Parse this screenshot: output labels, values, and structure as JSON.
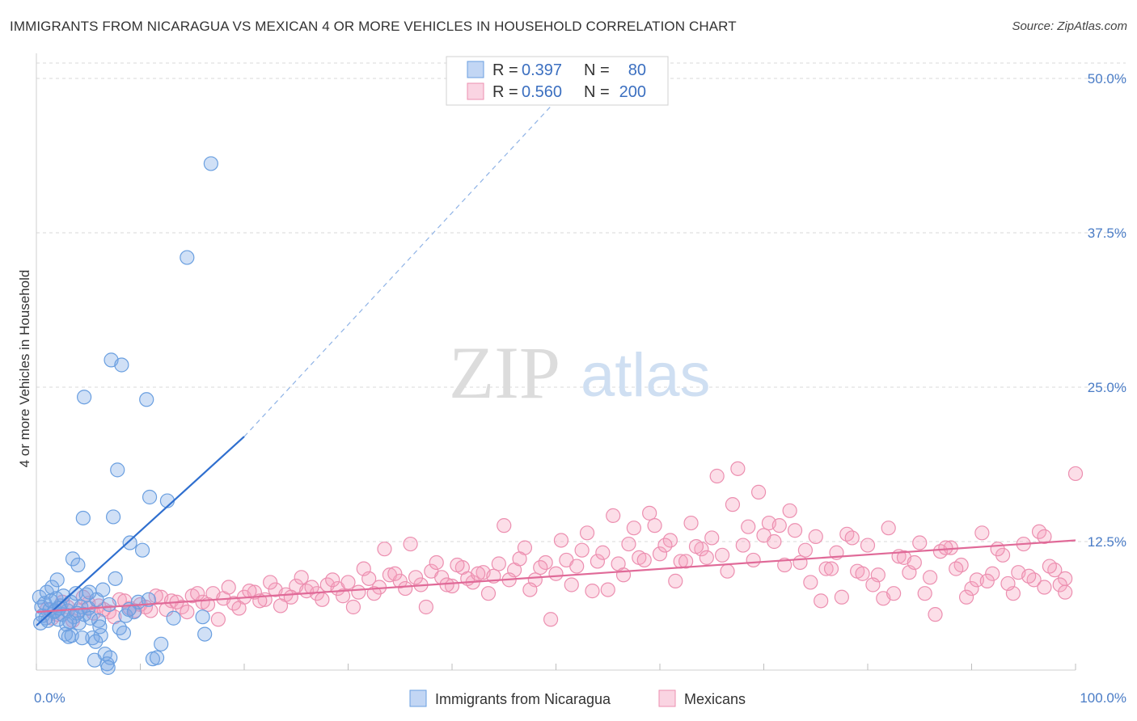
{
  "header": {
    "title": "IMMIGRANTS FROM NICARAGUA VS MEXICAN 4 OR MORE VEHICLES IN HOUSEHOLD CORRELATION CHART",
    "source": "Source: ZipAtlas.com"
  },
  "watermark": {
    "zip": "ZIP",
    "atlas": "atlas"
  },
  "legend": {
    "r_label": "R =",
    "n_label": "N =",
    "rows": [
      {
        "r": "0.397",
        "n": "80"
      },
      {
        "r": "0.560",
        "n": "200"
      }
    ]
  },
  "bottom_legend": [
    "Immigrants from Nicaragua",
    "Mexicans"
  ],
  "colors": {
    "blue": "#6a9fe0",
    "blue_fill": "rgba(120,165,230,0.35)",
    "blue_line": "#2f6fcf",
    "pink": "#ec8fb0",
    "pink_fill": "rgba(245,160,190,0.35)",
    "pink_line": "#e06a98",
    "grid": "#d9d9d9",
    "tick_text": "#4a7cc6"
  },
  "chart_data": {
    "type": "scatter",
    "title": "IMMIGRANTS FROM NICARAGUA VS MEXICAN 4 OR MORE VEHICLES IN HOUSEHOLD CORRELATION CHART",
    "xlabel": "",
    "ylabel": "4 or more Vehicles in Household",
    "xlim": [
      0,
      100
    ],
    "ylim": [
      0,
      52
    ],
    "x_tick_labels": [
      "0.0%",
      "100.0%"
    ],
    "y_ticks": [
      12.5,
      25.0,
      37.5,
      50.0
    ],
    "y_tick_labels": [
      "12.5%",
      "25.0%",
      "37.5%",
      "50.0%"
    ],
    "grid": true,
    "legend_position": "top-center",
    "series": [
      {
        "name": "Immigrants from Nicaragua",
        "r": 0.397,
        "n": 80,
        "trend": {
          "x0": 0,
          "y0": 5.7,
          "x1": 20,
          "y1": 21.0,
          "dashed_to": {
            "x": 52,
            "y": 50.0
          }
        },
        "points": [
          [
            0.3,
            8.0
          ],
          [
            0.5,
            7.2
          ],
          [
            0.6,
            6.5
          ],
          [
            0.8,
            7.5
          ],
          [
            1.0,
            8.4
          ],
          [
            1.1,
            6.1
          ],
          [
            1.3,
            7.0
          ],
          [
            1.5,
            8.8
          ],
          [
            1.7,
            6.8
          ],
          [
            1.9,
            7.9
          ],
          [
            2.0,
            9.4
          ],
          [
            2.1,
            6.2
          ],
          [
            2.3,
            7.3
          ],
          [
            2.5,
            6.6
          ],
          [
            2.6,
            8.1
          ],
          [
            2.8,
            5.0
          ],
          [
            3.0,
            6.9
          ],
          [
            3.1,
            4.8
          ],
          [
            3.3,
            7.6
          ],
          [
            3.5,
            11.1
          ],
          [
            3.6,
            6.4
          ],
          [
            3.8,
            8.3
          ],
          [
            4.0,
            10.6
          ],
          [
            4.1,
            5.9
          ],
          [
            4.3,
            7.2
          ],
          [
            4.5,
            14.4
          ],
          [
            4.6,
            6.6
          ],
          [
            4.8,
            8.2
          ],
          [
            5.0,
            7.1
          ],
          [
            5.2,
            6.3
          ],
          [
            5.4,
            4.7
          ],
          [
            5.6,
            2.9
          ],
          [
            5.8,
            7.8
          ],
          [
            6.0,
            6.1
          ],
          [
            6.2,
            4.9
          ],
          [
            6.4,
            8.6
          ],
          [
            6.6,
            3.4
          ],
          [
            6.8,
            2.6
          ],
          [
            7.0,
            7.4
          ],
          [
            7.2,
            27.2
          ],
          [
            7.4,
            14.5
          ],
          [
            7.6,
            9.5
          ],
          [
            7.8,
            18.3
          ],
          [
            8.0,
            5.5
          ],
          [
            8.2,
            26.8
          ],
          [
            8.4,
            5.1
          ],
          [
            8.6,
            6.5
          ],
          [
            9.0,
            12.4
          ],
          [
            9.4,
            6.8
          ],
          [
            9.8,
            7.6
          ],
          [
            10.2,
            11.8
          ],
          [
            10.6,
            24.0
          ],
          [
            10.9,
            16.1
          ],
          [
            11.2,
            3.0
          ],
          [
            11.6,
            3.1
          ],
          [
            12.0,
            4.2
          ],
          [
            12.6,
            15.8
          ],
          [
            13.2,
            6.3
          ],
          [
            10.8,
            7.8
          ],
          [
            14.5,
            35.5
          ],
          [
            16.0,
            6.4
          ],
          [
            4.6,
            24.2
          ],
          [
            16.8,
            43.1
          ],
          [
            3.4,
            4.9
          ],
          [
            2.9,
            5.8
          ],
          [
            1.4,
            7.7
          ],
          [
            0.9,
            6.3
          ],
          [
            1.8,
            6.9
          ],
          [
            2.2,
            7.1
          ],
          [
            3.9,
            6.7
          ],
          [
            5.1,
            8.4
          ],
          [
            6.1,
            5.6
          ],
          [
            7.1,
            3.1
          ],
          [
            8.9,
            7.0
          ],
          [
            4.4,
            4.7
          ],
          [
            5.7,
            4.4
          ],
          [
            6.9,
            2.3
          ],
          [
            3.2,
            6.0
          ],
          [
            16.2,
            5.0
          ],
          [
            0.4,
            5.9
          ]
        ]
      },
      {
        "name": "Mexicans",
        "r": 0.56,
        "n": 200,
        "trend": {
          "x0": 0,
          "y0": 6.8,
          "x1": 100,
          "y1": 12.6
        },
        "points": [
          [
            1.0,
            7.0
          ],
          [
            2.0,
            6.6
          ],
          [
            3.0,
            7.2
          ],
          [
            4.0,
            6.9
          ],
          [
            5.0,
            7.5
          ],
          [
            6.0,
            7.3
          ],
          [
            7.0,
            6.8
          ],
          [
            8.0,
            7.8
          ],
          [
            9.0,
            7.1
          ],
          [
            10.0,
            7.4
          ],
          [
            11.0,
            6.9
          ],
          [
            12.0,
            8.0
          ],
          [
            13.0,
            7.7
          ],
          [
            14.0,
            7.2
          ],
          [
            15.0,
            8.1
          ],
          [
            16.0,
            7.6
          ],
          [
            17.0,
            8.3
          ],
          [
            18.0,
            7.9
          ],
          [
            19.0,
            7.5
          ],
          [
            20.0,
            8.0
          ],
          [
            21.0,
            8.4
          ],
          [
            22.0,
            7.8
          ],
          [
            23.0,
            8.6
          ],
          [
            24.0,
            8.2
          ],
          [
            25.0,
            8.9
          ],
          [
            26.0,
            8.5
          ],
          [
            27.0,
            8.3
          ],
          [
            28.0,
            9.0
          ],
          [
            29.0,
            8.7
          ],
          [
            30.0,
            9.2
          ],
          [
            31.0,
            8.4
          ],
          [
            32.0,
            9.5
          ],
          [
            33.0,
            8.8
          ],
          [
            34.0,
            9.8
          ],
          [
            35.0,
            9.3
          ],
          [
            36.0,
            12.3
          ],
          [
            37.0,
            9.0
          ],
          [
            38.0,
            10.1
          ],
          [
            39.0,
            9.6
          ],
          [
            40.0,
            8.9
          ],
          [
            41.0,
            10.4
          ],
          [
            42.0,
            9.2
          ],
          [
            43.0,
            10.0
          ],
          [
            44.0,
            9.7
          ],
          [
            45.0,
            13.8
          ],
          [
            46.0,
            10.2
          ],
          [
            47.0,
            12.0
          ],
          [
            48.0,
            9.4
          ],
          [
            49.0,
            10.8
          ],
          [
            50.0,
            9.9
          ],
          [
            51.0,
            11.0
          ],
          [
            52.0,
            10.5
          ],
          [
            53.0,
            13.2
          ],
          [
            54.0,
            10.9
          ],
          [
            55.0,
            8.6
          ],
          [
            56.0,
            10.7
          ],
          [
            57.0,
            12.3
          ],
          [
            58.0,
            11.2
          ],
          [
            59.0,
            14.8
          ],
          [
            60.0,
            11.5
          ],
          [
            61.0,
            12.6
          ],
          [
            62.0,
            10.9
          ],
          [
            63.0,
            14.0
          ],
          [
            64.0,
            11.9
          ],
          [
            65.0,
            12.8
          ],
          [
            66.0,
            11.4
          ],
          [
            67.0,
            15.5
          ],
          [
            68.0,
            12.2
          ],
          [
            69.0,
            11.0
          ],
          [
            70.0,
            13.0
          ],
          [
            71.0,
            12.5
          ],
          [
            72.0,
            10.6
          ],
          [
            73.0,
            13.4
          ],
          [
            74.0,
            11.8
          ],
          [
            75.0,
            12.9
          ],
          [
            76.0,
            10.3
          ],
          [
            77.0,
            11.6
          ],
          [
            78.0,
            13.1
          ],
          [
            79.0,
            10.1
          ],
          [
            80.0,
            12.2
          ],
          [
            81.0,
            9.8
          ],
          [
            82.0,
            13.6
          ],
          [
            83.0,
            11.3
          ],
          [
            84.0,
            10.0
          ],
          [
            85.0,
            12.4
          ],
          [
            86.0,
            9.6
          ],
          [
            87.0,
            11.7
          ],
          [
            88.0,
            12.0
          ],
          [
            89.0,
            10.6
          ],
          [
            90.0,
            8.7
          ],
          [
            91.0,
            13.2
          ],
          [
            92.0,
            9.9
          ],
          [
            93.0,
            11.4
          ],
          [
            94.0,
            8.3
          ],
          [
            95.0,
            12.3
          ],
          [
            96.0,
            9.4
          ],
          [
            97.0,
            8.8
          ],
          [
            98.0,
            10.2
          ],
          [
            99.0,
            9.5
          ],
          [
            100.0,
            18.0
          ],
          [
            1.5,
            6.3
          ],
          [
            2.5,
            7.6
          ],
          [
            3.5,
            6.1
          ],
          [
            4.5,
            8.0
          ],
          [
            5.5,
            6.7
          ],
          [
            6.5,
            7.0
          ],
          [
            7.5,
            6.4
          ],
          [
            8.5,
            7.7
          ],
          [
            9.5,
            6.9
          ],
          [
            10.5,
            7.2
          ],
          [
            11.5,
            8.1
          ],
          [
            12.5,
            7.0
          ],
          [
            13.5,
            7.6
          ],
          [
            14.5,
            6.8
          ],
          [
            15.5,
            8.3
          ],
          [
            16.5,
            7.4
          ],
          [
            17.5,
            6.2
          ],
          [
            18.5,
            8.8
          ],
          [
            19.5,
            7.1
          ],
          [
            20.5,
            8.5
          ],
          [
            21.5,
            7.7
          ],
          [
            22.5,
            9.2
          ],
          [
            23.5,
            7.3
          ],
          [
            24.5,
            8.0
          ],
          [
            25.5,
            9.6
          ],
          [
            26.5,
            8.8
          ],
          [
            27.5,
            7.8
          ],
          [
            28.5,
            9.4
          ],
          [
            29.5,
            8.1
          ],
          [
            30.5,
            7.2
          ],
          [
            31.5,
            10.3
          ],
          [
            32.5,
            8.3
          ],
          [
            33.5,
            11.9
          ],
          [
            34.5,
            9.9
          ],
          [
            35.5,
            8.7
          ],
          [
            36.5,
            9.6
          ],
          [
            37.5,
            7.2
          ],
          [
            38.5,
            10.8
          ],
          [
            39.5,
            9.0
          ],
          [
            40.5,
            10.6
          ],
          [
            41.5,
            9.5
          ],
          [
            42.5,
            9.9
          ],
          [
            43.5,
            8.3
          ],
          [
            44.5,
            10.7
          ],
          [
            45.5,
            9.4
          ],
          [
            46.5,
            11.1
          ],
          [
            47.5,
            8.6
          ],
          [
            48.5,
            10.4
          ],
          [
            49.5,
            6.2
          ],
          [
            50.5,
            12.6
          ],
          [
            51.5,
            9.0
          ],
          [
            52.5,
            11.8
          ],
          [
            53.5,
            8.5
          ],
          [
            54.5,
            11.6
          ],
          [
            55.5,
            14.6
          ],
          [
            56.5,
            9.8
          ],
          [
            57.5,
            13.6
          ],
          [
            58.5,
            11.0
          ],
          [
            59.5,
            13.8
          ],
          [
            60.5,
            12.2
          ],
          [
            61.5,
            9.3
          ],
          [
            62.5,
            10.9
          ],
          [
            63.5,
            12.1
          ],
          [
            64.5,
            11.2
          ],
          [
            65.5,
            17.8
          ],
          [
            66.5,
            10.1
          ],
          [
            67.5,
            18.4
          ],
          [
            68.5,
            13.7
          ],
          [
            69.5,
            16.5
          ],
          [
            70.5,
            14.0
          ],
          [
            71.5,
            13.8
          ],
          [
            72.5,
            15.0
          ],
          [
            73.5,
            10.8
          ],
          [
            74.5,
            9.2
          ],
          [
            75.5,
            7.7
          ],
          [
            76.5,
            10.3
          ],
          [
            77.5,
            8.0
          ],
          [
            78.5,
            12.8
          ],
          [
            79.5,
            9.9
          ],
          [
            80.5,
            9.0
          ],
          [
            81.5,
            7.9
          ],
          [
            82.5,
            8.3
          ],
          [
            83.5,
            11.2
          ],
          [
            84.5,
            10.8
          ],
          [
            85.5,
            8.3
          ],
          [
            86.5,
            6.6
          ],
          [
            87.5,
            12.0
          ],
          [
            88.5,
            10.3
          ],
          [
            89.5,
            8.0
          ],
          [
            90.5,
            9.4
          ],
          [
            91.5,
            9.3
          ],
          [
            92.5,
            11.9
          ],
          [
            93.5,
            9.1
          ],
          [
            94.5,
            10.0
          ],
          [
            95.5,
            9.7
          ],
          [
            96.5,
            13.3
          ],
          [
            97.5,
            10.5
          ],
          [
            98.5,
            9.0
          ],
          [
            99.0,
            8.4
          ],
          [
            97.0,
            12.9
          ]
        ]
      }
    ]
  }
}
